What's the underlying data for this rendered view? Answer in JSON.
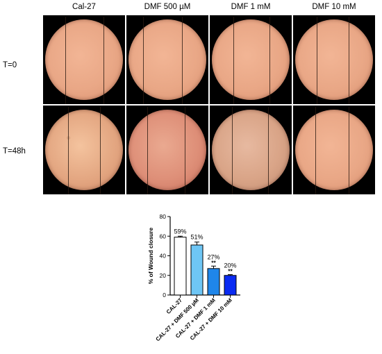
{
  "figure": {
    "columns": [
      "Cal-27",
      "DMF 500 µM",
      "DMF 1 mM",
      "DMF 10 mM"
    ],
    "rows": [
      "T=0",
      "T=48h"
    ]
  },
  "chart_data": {
    "type": "bar",
    "categories": [
      "CAL-27",
      "CAL-27 + DMF 500 µM",
      "CAL-27 + DMF 1 mM",
      "CAL-27 + DMF 10 mM"
    ],
    "values": [
      59,
      51,
      27,
      20
    ],
    "errors": [
      1,
      3,
      2.5,
      0.8
    ],
    "data_labels": [
      "59%",
      "51%",
      "27%",
      "20%"
    ],
    "significance": [
      "",
      "",
      "**",
      "**"
    ],
    "colors": [
      "#ffffff",
      "#6ec6f5",
      "#1f86ea",
      "#0a2bf2"
    ],
    "xlabel": "",
    "ylabel": "% of Wound closure",
    "ylim": [
      0,
      80
    ],
    "yticks": [
      0,
      20,
      40,
      60,
      80
    ]
  }
}
